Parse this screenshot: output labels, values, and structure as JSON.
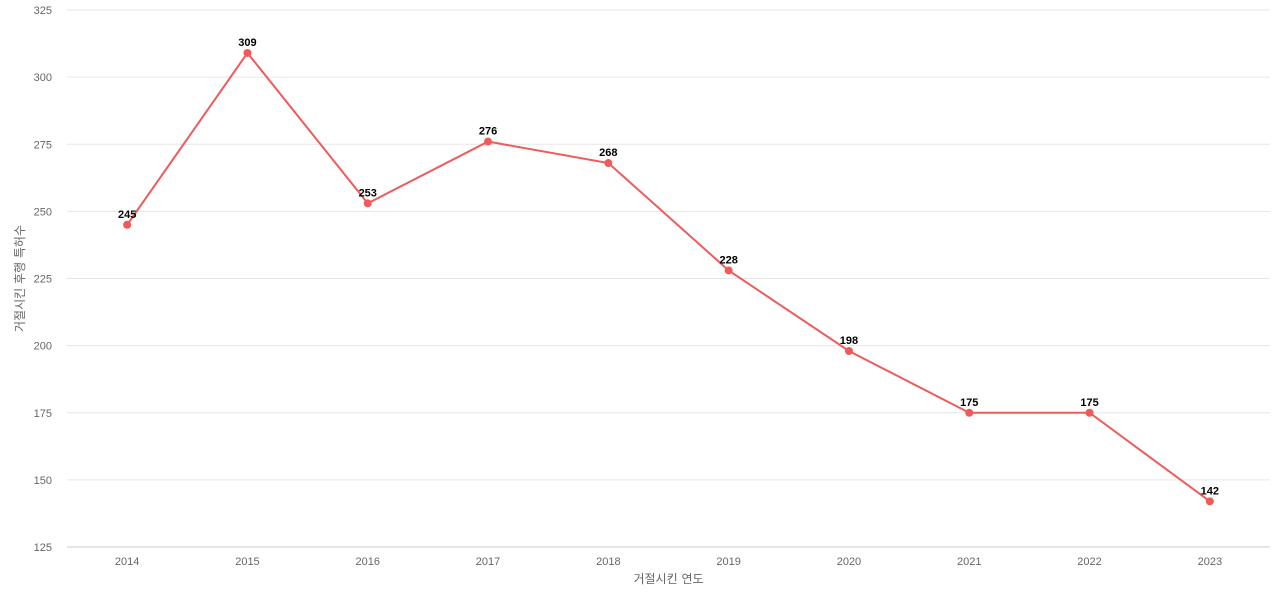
{
  "chart_data": {
    "type": "line",
    "categories": [
      "2014",
      "2015",
      "2016",
      "2017",
      "2018",
      "2019",
      "2020",
      "2021",
      "2022",
      "2023"
    ],
    "series": [
      {
        "values": [
          245,
          309,
          253,
          276,
          268,
          228,
          198,
          175,
          175,
          142
        ],
        "color": "#ef5b5b"
      }
    ],
    "xlabel": "거절시킨 연도",
    "ylabel": "거절시킨 후행 특허수",
    "ylim": [
      125,
      325
    ],
    "yticks": [
      125,
      150,
      175,
      200,
      225,
      250,
      275,
      300,
      325
    ],
    "grid": true,
    "data_labels": true
  }
}
